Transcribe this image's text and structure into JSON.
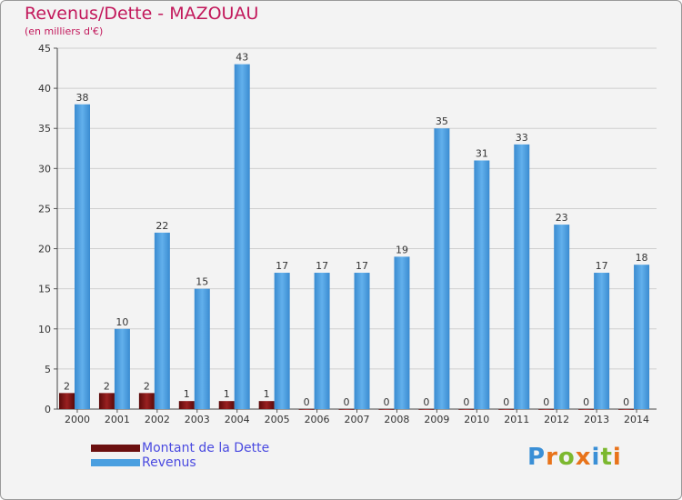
{
  "header": {
    "title": "Revenus/Dette - MAZOUAU",
    "subtitle": "(en milliers d'€)"
  },
  "chart_data": {
    "type": "bar",
    "title": "Revenus/Dette - MAZOUAU",
    "subtitle": "(en milliers d'€)",
    "xlabel": "",
    "ylabel": "",
    "categories": [
      "2000",
      "2001",
      "2002",
      "2003",
      "2004",
      "2005",
      "2006",
      "2007",
      "2008",
      "2009",
      "2010",
      "2011",
      "2012",
      "2013",
      "2014"
    ],
    "series": [
      {
        "name": "Montant de la Dette",
        "color": "#6b0f0f",
        "values": [
          2,
          2,
          2,
          1,
          1,
          1,
          0,
          0,
          0,
          0,
          0,
          0,
          0,
          0,
          0
        ]
      },
      {
        "name": "Revenus",
        "color": "#4a9fe0",
        "values": [
          38,
          10,
          22,
          15,
          43,
          17,
          17,
          17,
          19,
          35,
          31,
          33,
          23,
          17,
          18
        ]
      }
    ],
    "ylim": [
      0,
      45
    ],
    "yticks": [
      0,
      5,
      10,
      15,
      20,
      25,
      30,
      35,
      40,
      45
    ],
    "grid": true,
    "legend_position": "bottom-left"
  },
  "legend": {
    "items": [
      {
        "label": "Montant de la Dette",
        "color": "#6b0f0f"
      },
      {
        "label": "Revenus",
        "color": "#4a9fe0"
      }
    ]
  },
  "logo": {
    "text": "Proxiti",
    "colors": [
      "#3a8fd6",
      "#e8731a",
      "#7cb82f",
      "#e8731a",
      "#3a8fd6",
      "#7cb82f",
      "#e8731a"
    ]
  }
}
